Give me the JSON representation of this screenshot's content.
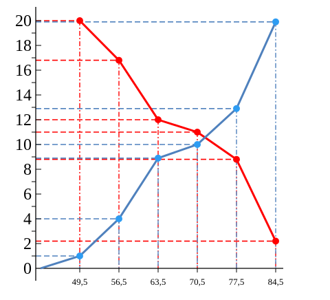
{
  "chart_data": {
    "type": "line",
    "x": [
      49.5,
      56.5,
      63.5,
      70.5,
      77.5,
      84.5
    ],
    "x_tick_labels": [
      "49,5",
      "56,5",
      "63,5",
      "70,5",
      "77,5",
      "84,5"
    ],
    "y_tick_labels": [
      "0",
      "2",
      "4",
      "6",
      "8",
      "10",
      "12",
      "14",
      "16",
      "18",
      "20"
    ],
    "ylim": [
      0,
      20
    ],
    "grid": false,
    "series": [
      {
        "key": "decreasing",
        "color": "#ff0000",
        "values": [
          20,
          16.8,
          12,
          11,
          8.8,
          2.2
        ]
      },
      {
        "key": "increasing",
        "color": "#4f81bd",
        "point_color": "#2e9cf2",
        "origin": [
          42.5,
          0
        ],
        "values": [
          1,
          4,
          8.9,
          10,
          12.9,
          19.9
        ]
      }
    ],
    "axis_color": "#000000",
    "guide_dash_colors": {
      "red": "#ff0000",
      "blue": "#4f81bd"
    }
  }
}
